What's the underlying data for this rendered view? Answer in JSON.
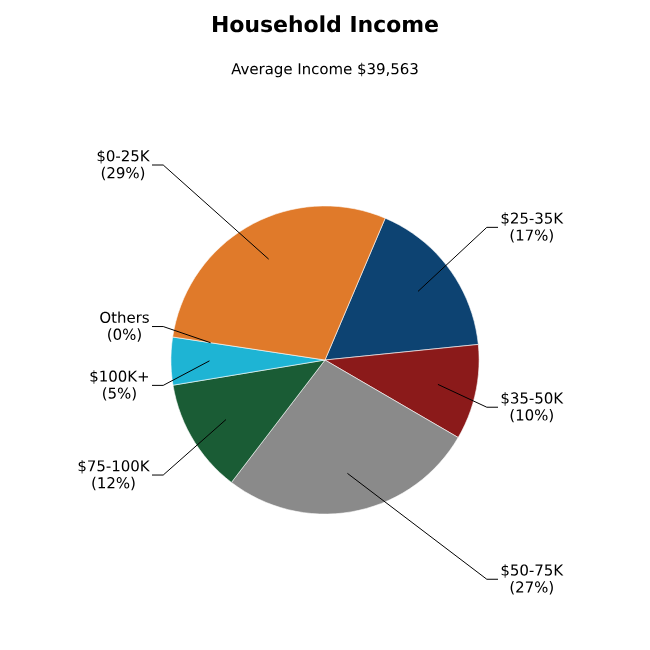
{
  "chart_data": {
    "type": "pie",
    "title": "Household Income",
    "subtitle": "Average Income  $39,563",
    "categories": [
      "$25-35K",
      "$35-50K",
      "$50-75K",
      "$75-100K",
      "$100K+",
      "Others",
      "$0-25K"
    ],
    "values": [
      17,
      10,
      27,
      12,
      5,
      0,
      29
    ],
    "value_labels": [
      "(17%)",
      "(10%)",
      "(27%)",
      "(12%)",
      "(5%)",
      "(0%)",
      "(29%)"
    ],
    "colors": [
      "#0d4372",
      "#8b1a1a",
      "#8a8a8a",
      "#1a5c35",
      "#1eb4d4",
      "#999999",
      "#e07a2a"
    ]
  }
}
